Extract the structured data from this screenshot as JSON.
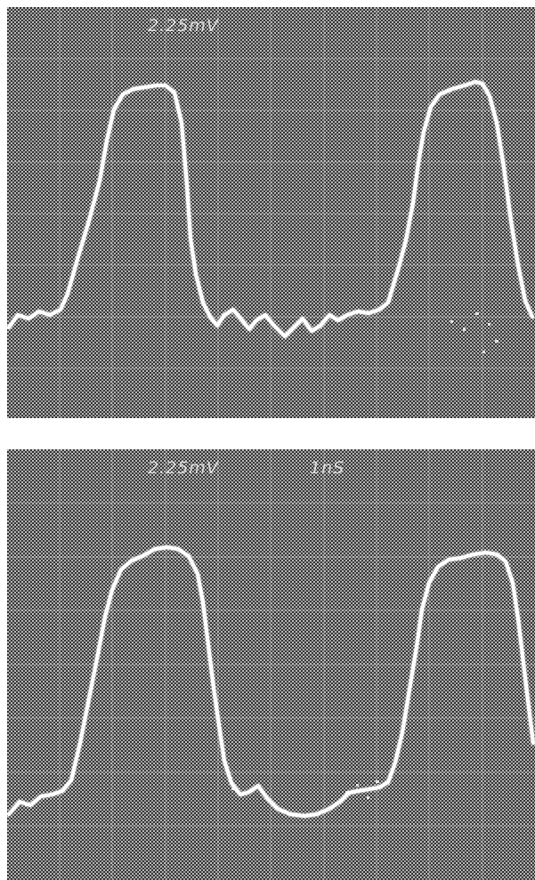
{
  "colors": {
    "background": "#ffffff",
    "screen_dark": "#3a3a3a",
    "screen_light": "#a6a6a6",
    "trace": "#ffffff",
    "graticule": "#d0d0d0"
  },
  "scopes": [
    {
      "id": "top",
      "header": {
        "volts_div": "2.25mV",
        "time_div": ""
      }
    },
    {
      "id": "bottom",
      "header": {
        "volts_div": "2.25mV",
        "time_div": "1nS"
      }
    }
  ]
}
